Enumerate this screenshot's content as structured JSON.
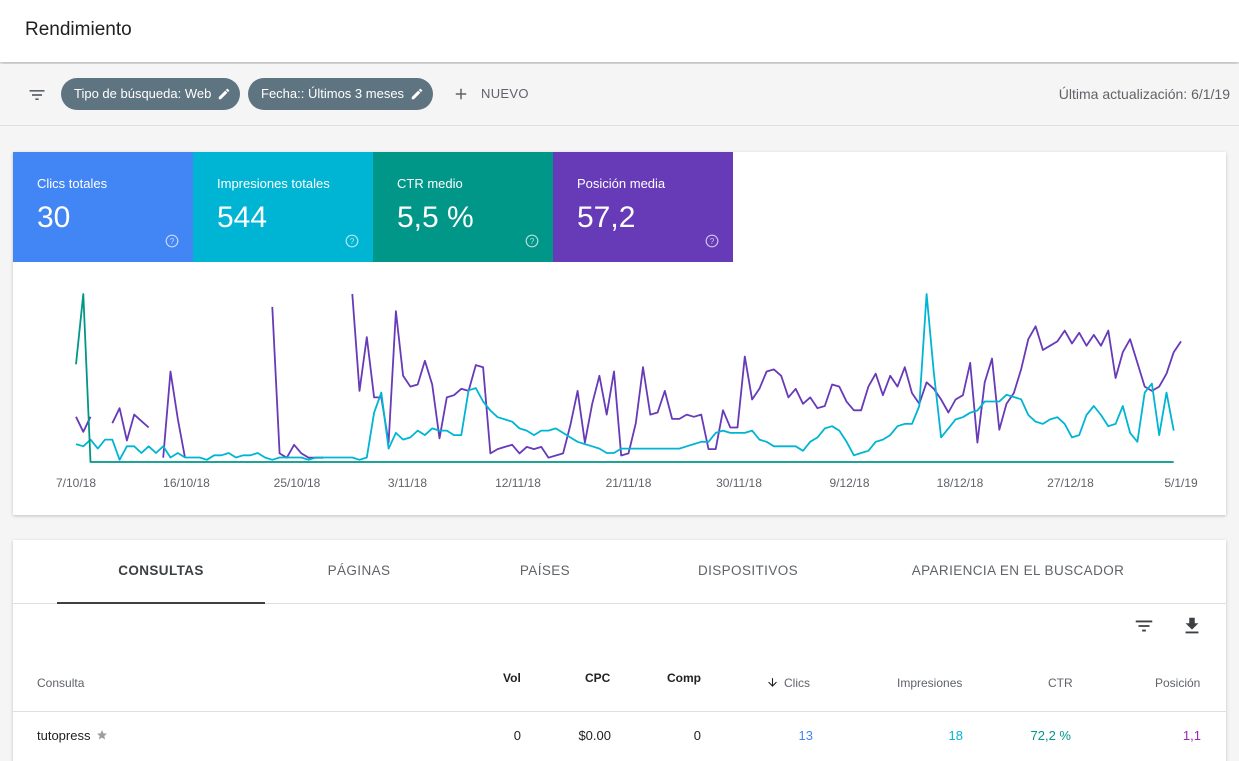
{
  "header": {
    "title": "Rendimiento"
  },
  "filters": {
    "chips": [
      "Tipo de búsqueda: Web",
      "Fecha:: Últimos 3 meses"
    ],
    "new_label": "NUEVO",
    "last_update": "Última actualización: 6/1/19"
  },
  "metrics": [
    {
      "label": "Clics totales",
      "value": "30",
      "color": "#4285f4"
    },
    {
      "label": "Impresiones totales",
      "value": "544",
      "color": "#00b5d4"
    },
    {
      "label": "CTR medio",
      "value": "5,5 %",
      "color": "#009688"
    },
    {
      "label": "Posición media",
      "value": "57,2",
      "color": "#673ab7"
    }
  ],
  "chart_data": {
    "type": "line",
    "x_tick_labels": [
      "7/10/18",
      "16/10/18",
      "25/10/18",
      "3/11/18",
      "12/11/18",
      "21/11/18",
      "30/11/18",
      "9/12/18",
      "18/12/18",
      "27/12/18",
      "5/1/19"
    ],
    "grid": false,
    "series": [
      {
        "name": "Posición media",
        "color": "#673ab7",
        "values": [
          21,
          14,
          21,
          null,
          null,
          18,
          25,
          10,
          22,
          19,
          16,
          null,
          2,
          42,
          20,
          2,
          null,
          null,
          null,
          null,
          null,
          null,
          2,
          null,
          null,
          null,
          null,
          72,
          4,
          2,
          8,
          4,
          2,
          2,
          2,
          null,
          null,
          null,
          78,
          33,
          58,
          30,
          30,
          9,
          70,
          40,
          35,
          36,
          47,
          36,
          11,
          30,
          31,
          34,
          33,
          45,
          44,
          4,
          6,
          7,
          8,
          4,
          7,
          6,
          7,
          2,
          3,
          4,
          17,
          33,
          9,
          27,
          40,
          22,
          42,
          3,
          4,
          18,
          44,
          22,
          23,
          33,
          20,
          20,
          22,
          21,
          22,
          6,
          6,
          24,
          16,
          16,
          49,
          29,
          34,
          42,
          43,
          40,
          30,
          34,
          27,
          30,
          25,
          26,
          36,
          35,
          28,
          24,
          24,
          35,
          41,
          31,
          40,
          35,
          44,
          32,
          27,
          37,
          34,
          29,
          23,
          29,
          31,
          46,
          9,
          37,
          48,
          15,
          27,
          32,
          43,
          57,
          63,
          52,
          54,
          56,
          61,
          55,
          60,
          54,
          59,
          54,
          61,
          39,
          51,
          57,
          46,
          35,
          33,
          35,
          41,
          51,
          56
        ]
      },
      {
        "name": "Impresiones totales",
        "color": "#00b5d4",
        "values": [
          8,
          7,
          10,
          6,
          10,
          10,
          1,
          7,
          7,
          4,
          7,
          4,
          7,
          2,
          4,
          2,
          2,
          2,
          1,
          3,
          3,
          4,
          2,
          3,
          3,
          4,
          2,
          1,
          2,
          2,
          2,
          2,
          1,
          2,
          2,
          2,
          2,
          2,
          2,
          1,
          2,
          22,
          31,
          6,
          13,
          10,
          11,
          14,
          12,
          15,
          14,
          14,
          12,
          12,
          32,
          33,
          27,
          23,
          20,
          19,
          18,
          15,
          14,
          12,
          14,
          14,
          15,
          13,
          11,
          9,
          8,
          7,
          6,
          4,
          4,
          6,
          6,
          6,
          6,
          6,
          6,
          6,
          6,
          6,
          7,
          8,
          9,
          9,
          13,
          14,
          13,
          13,
          13,
          14,
          10,
          9,
          7,
          7,
          7,
          7,
          5,
          9,
          11,
          15,
          16,
          14,
          9,
          3,
          4,
          5,
          9,
          10,
          12,
          16,
          17,
          17,
          25,
          75,
          40,
          11,
          15,
          19,
          20,
          22,
          23,
          27,
          27,
          27,
          30,
          29,
          28,
          21,
          18,
          17,
          19,
          20,
          17,
          11,
          12,
          21,
          25,
          21,
          16,
          17,
          25,
          13,
          9,
          31,
          35,
          12,
          31,
          14
        ]
      },
      {
        "name": "Clics totales",
        "color": "#009688",
        "values": [
          25,
          43,
          0,
          0,
          0,
          0,
          0,
          0,
          0,
          0,
          0,
          0,
          0,
          0,
          0,
          0,
          0,
          0,
          0,
          0,
          0,
          0,
          0,
          0,
          0,
          0,
          0,
          0,
          0,
          0,
          0,
          0,
          0,
          0,
          0,
          0,
          0,
          0,
          0,
          0,
          0,
          0,
          0,
          0,
          0,
          0,
          0,
          0,
          0,
          0,
          0,
          0,
          0,
          0,
          0,
          0,
          0,
          0,
          0,
          0,
          0,
          0,
          0,
          0,
          0,
          0,
          0,
          0,
          0,
          0,
          0,
          0,
          0,
          0,
          0,
          0,
          0,
          0,
          0,
          0,
          0,
          0,
          0,
          0,
          0,
          0,
          0,
          0,
          0,
          0,
          0,
          0,
          0,
          0,
          0,
          0,
          0,
          0,
          0,
          0,
          0,
          0,
          0,
          0,
          0,
          0,
          0,
          0,
          0,
          0,
          0,
          0,
          0,
          0,
          0,
          0,
          0,
          0,
          0,
          0,
          0,
          0,
          0,
          0,
          0,
          0,
          0,
          0,
          0,
          0,
          0,
          0,
          0,
          0,
          0,
          0,
          0,
          0,
          0,
          0,
          0,
          0,
          0,
          0,
          0,
          0,
          0,
          0,
          0,
          0,
          0,
          0
        ]
      }
    ]
  },
  "tabs": [
    "CONSULTAS",
    "PÁGINAS",
    "PAÍSES",
    "DISPOSITIVOS",
    "APARIENCIA EN EL BUSCADOR"
  ],
  "table": {
    "columns": [
      "Consulta",
      "Vol",
      "CPC",
      "Comp",
      "Clics",
      "Impresiones",
      "CTR",
      "Posición"
    ],
    "rows": [
      {
        "query": "tutopress",
        "vol": "0",
        "cpc": "$0.00",
        "comp": "0",
        "clicks": "13",
        "impressions": "18",
        "ctr": "72,2 %",
        "position": "1,1"
      }
    ],
    "colors": {
      "clicks": "#4285f4",
      "impressions": "#00b5d4",
      "ctr": "#009688",
      "position": "#9c27b0"
    }
  }
}
